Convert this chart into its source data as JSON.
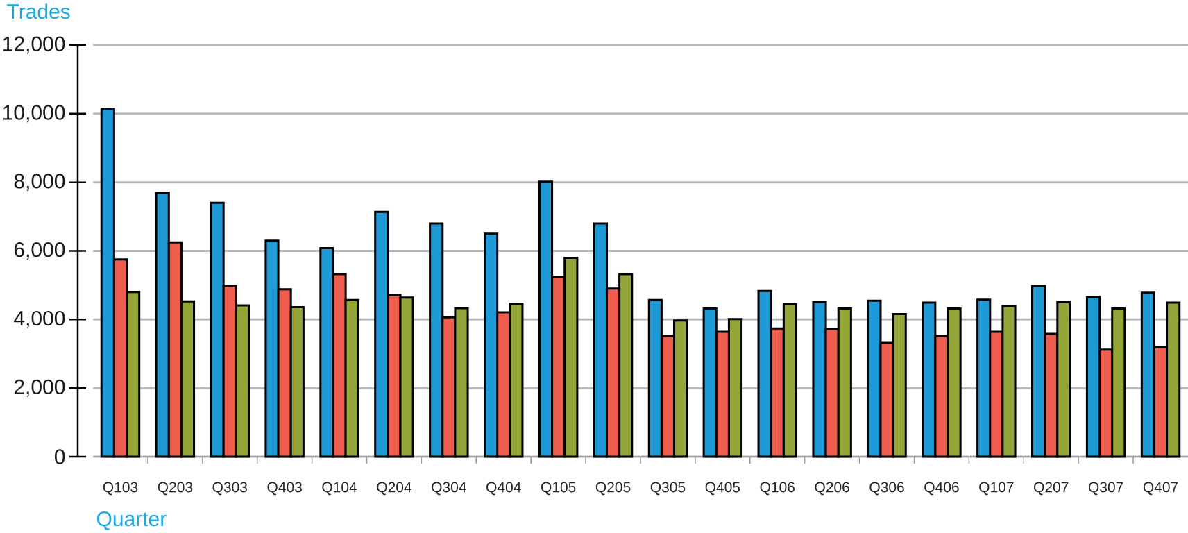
{
  "chart_data": {
    "type": "bar",
    "ylabel": "Trades",
    "xlabel": "Quarter",
    "categories": [
      "Q103",
      "Q203",
      "Q303",
      "Q403",
      "Q104",
      "Q204",
      "Q304",
      "Q404",
      "Q105",
      "Q205",
      "Q305",
      "Q405",
      "Q106",
      "Q206",
      "Q306",
      "Q406",
      "Q107",
      "Q207",
      "Q307",
      "Q407"
    ],
    "series": [
      {
        "color": "#1e9ad6",
        "values": [
          10150,
          7700,
          7400,
          6300,
          6080,
          7140,
          6800,
          6500,
          8020,
          6800,
          4570,
          4320,
          4830,
          4510,
          4550,
          4490,
          4580,
          4980,
          4660,
          4780
        ]
      },
      {
        "color": "#ee5c4d",
        "values": [
          5750,
          6250,
          4970,
          4880,
          5320,
          4710,
          4060,
          4210,
          5250,
          4900,
          3520,
          3640,
          3740,
          3730,
          3320,
          3520,
          3640,
          3580,
          3120,
          3200
        ]
      },
      {
        "color": "#95a638",
        "values": [
          4800,
          4530,
          4410,
          4360,
          4570,
          4640,
          4330,
          4460,
          5800,
          5320,
          3970,
          4010,
          4440,
          4320,
          4160,
          4320,
          4390,
          4500,
          4320,
          4490
        ]
      }
    ],
    "ylim": [
      0,
      12000
    ],
    "yticks": [
      0,
      {
        "value": 2000,
        "label": "2,000"
      },
      {
        "value": 4000,
        "label": "4,000"
      },
      {
        "value": 6000,
        "label": "6,000"
      },
      {
        "value": 8000,
        "label": "8,000"
      },
      {
        "value": 10000,
        "label": "10,000"
      },
      {
        "value": 12000,
        "label": "12,000"
      }
    ],
    "grid": "y"
  }
}
